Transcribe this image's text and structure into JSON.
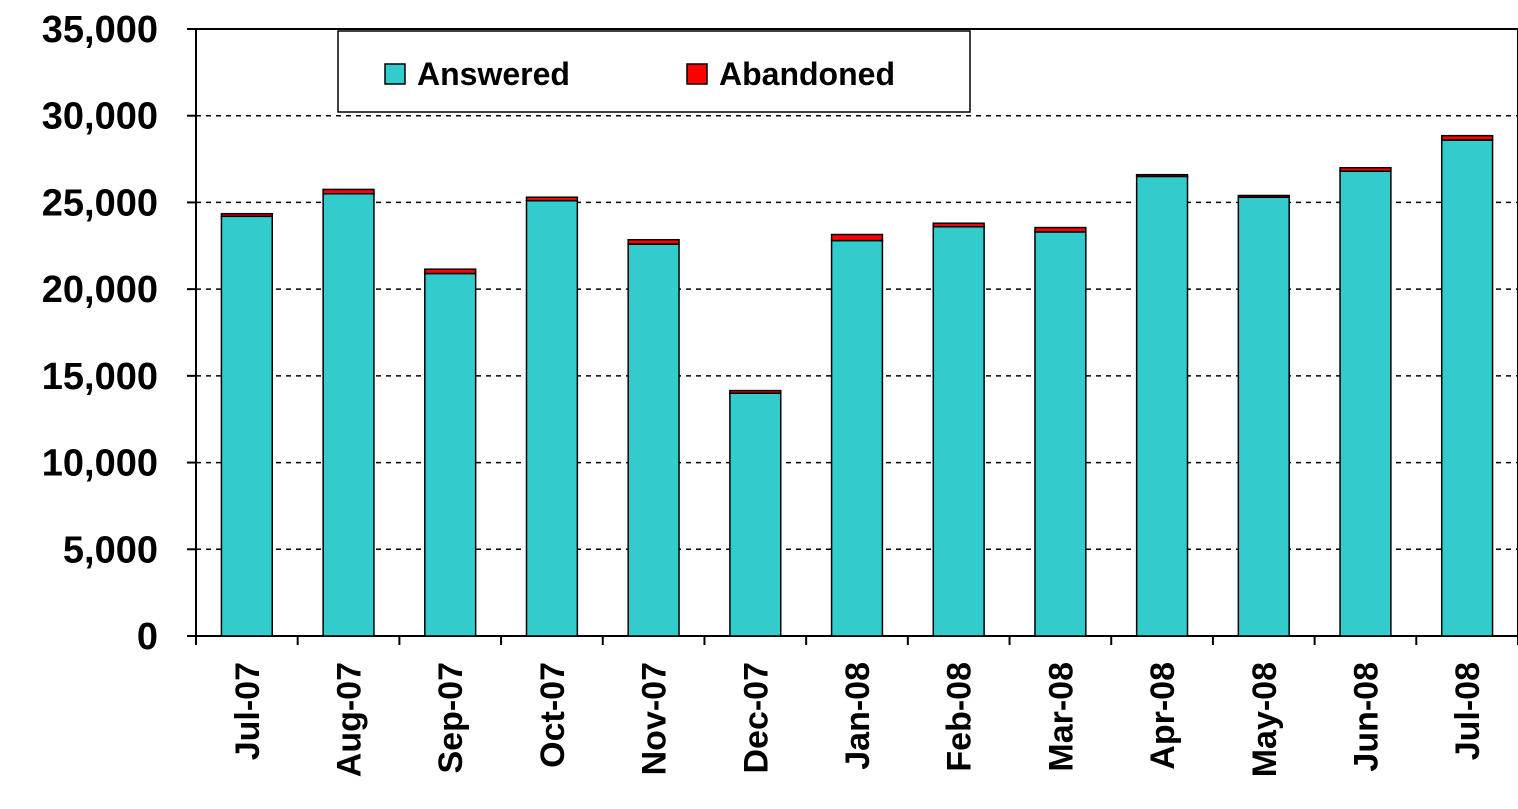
{
  "chart_data": {
    "type": "bar",
    "stacked": true,
    "categories": [
      "Jul-07",
      "Aug-07",
      "Sep-07",
      "Oct-07",
      "Nov-07",
      "Dec-07",
      "Jan-08",
      "Feb-08",
      "Mar-08",
      "Apr-08",
      "May-08",
      "Jun-08",
      "Jul-08"
    ],
    "series": [
      {
        "name": "Answered",
        "color": "#33CCCC",
        "values": [
          24200,
          25500,
          20900,
          25100,
          22600,
          14000,
          22800,
          23600,
          23300,
          26500,
          25300,
          26800,
          28600
        ]
      },
      {
        "name": "Abandoned",
        "color": "#FF0000",
        "values": [
          150,
          250,
          250,
          200,
          250,
          150,
          350,
          200,
          250,
          100,
          100,
          200,
          250
        ]
      }
    ],
    "title": "",
    "xlabel": "",
    "ylabel": "",
    "ylim": [
      0,
      35000
    ],
    "yticks": [
      "0",
      "5,000",
      "10,000",
      "15,000",
      "20,000",
      "25,000",
      "30,000",
      "35,000"
    ],
    "grid": true,
    "legend_position": "top-left"
  }
}
